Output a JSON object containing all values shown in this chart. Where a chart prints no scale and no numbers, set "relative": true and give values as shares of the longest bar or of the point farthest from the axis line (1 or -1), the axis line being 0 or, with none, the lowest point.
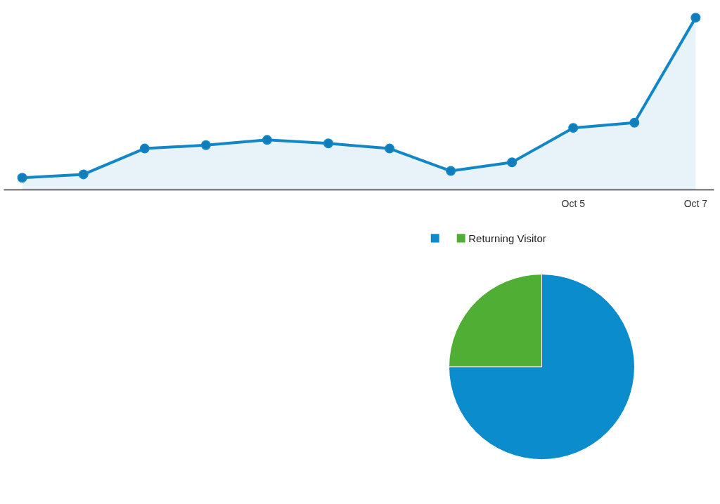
{
  "chart_data": [
    {
      "type": "area",
      "categories": [
        null,
        null,
        null,
        null,
        null,
        null,
        null,
        null,
        null,
        "Oct 5",
        null,
        "Oct 7"
      ],
      "relative": true,
      "marker": "circle",
      "line_style": "solid",
      "series": [
        {
          "color": "#1187c8",
          "values": [
            0.07,
            0.09,
            0.24,
            0.26,
            0.29,
            0.27,
            0.24,
            0.11,
            0.16,
            0.36,
            0.39,
            1
          ]
        }
      ]
    },
    {
      "type": "pie",
      "categories": [
        null,
        "Returning Visitor"
      ],
      "values": [
        75,
        25
      ],
      "colors": [
        "#0b8ccc",
        "#50ae34"
      ],
      "legend": "top"
    }
  ]
}
